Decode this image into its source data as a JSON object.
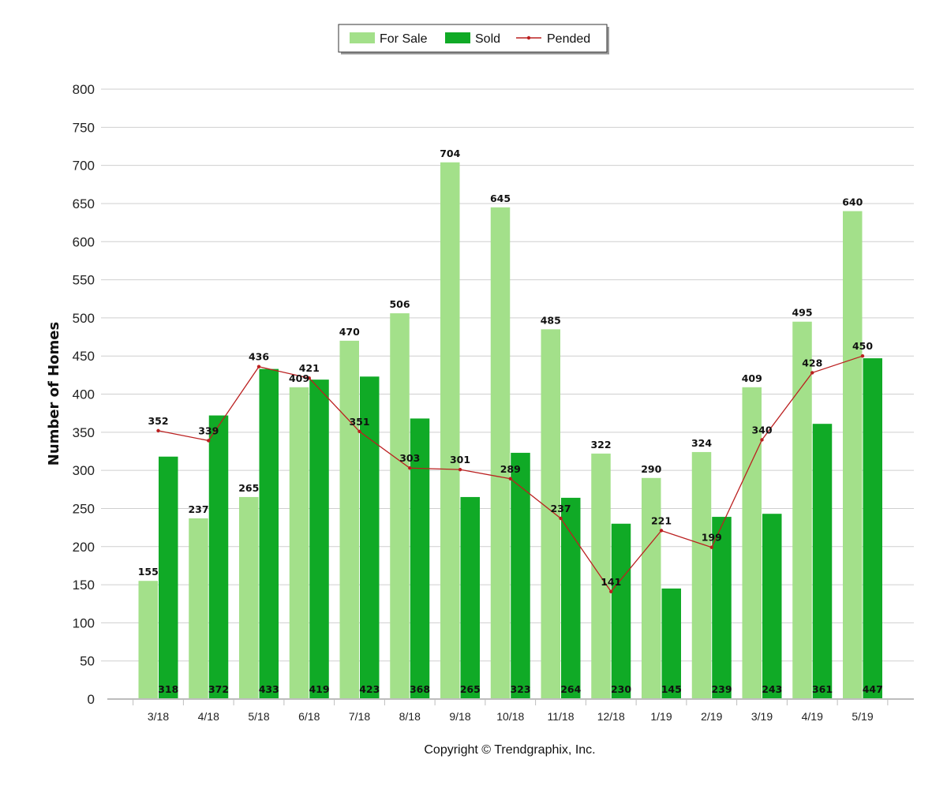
{
  "chart_data": {
    "type": "bar",
    "title": "",
    "xlabel": "",
    "ylabel": "Number of Homes",
    "ylim": [
      0,
      800
    ],
    "ytick_step": 50,
    "grid": true,
    "legend_position": "top-center",
    "categories": [
      "3/18",
      "4/18",
      "5/18",
      "6/18",
      "7/18",
      "8/18",
      "9/18",
      "10/18",
      "11/18",
      "12/18",
      "1/19",
      "2/19",
      "3/19",
      "4/19",
      "5/19"
    ],
    "series": [
      {
        "name": "For Sale",
        "kind": "bar",
        "color": "#a3e08a",
        "values": [
          155,
          237,
          265,
          409,
          470,
          506,
          704,
          645,
          485,
          322,
          290,
          324,
          409,
          495,
          640
        ]
      },
      {
        "name": "Sold",
        "kind": "bar",
        "color": "#10aa26",
        "values": [
          318,
          372,
          433,
          419,
          423,
          368,
          265,
          323,
          264,
          230,
          145,
          239,
          243,
          361,
          447
        ]
      },
      {
        "name": "Pended",
        "kind": "line",
        "color": "#bb2020",
        "values": [
          352,
          339,
          436,
          421,
          351,
          303,
          301,
          289,
          237,
          141,
          221,
          199,
          340,
          428,
          450
        ]
      }
    ]
  },
  "footer": {
    "copyright": "Copyright © Trendgraphix, Inc."
  }
}
